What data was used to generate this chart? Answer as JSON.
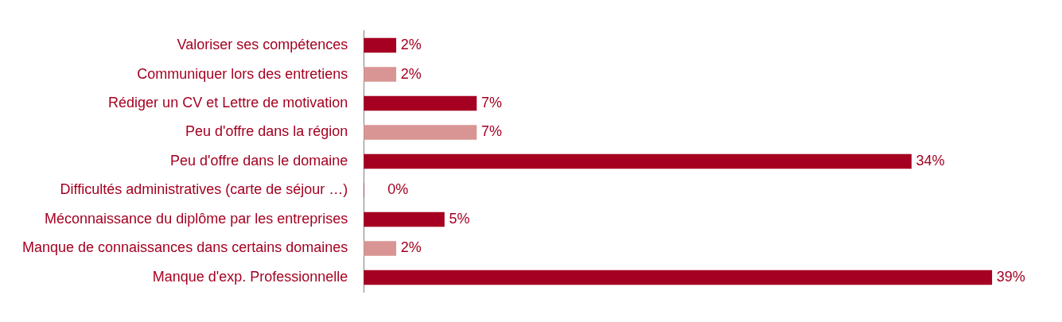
{
  "chart_data": {
    "type": "bar",
    "orientation": "horizontal",
    "categories": [
      "Valoriser ses compétences",
      "Communiquer lors des entretiens",
      "Rédiger un CV et Lettre de motivation",
      "Peu d'offre dans la région",
      "Peu d'offre dans le domaine",
      "Difficultés administratives (carte de séjour …)",
      "Méconnaissance du diplôme par les entreprises",
      "Manque de connaissances dans certains domaines",
      "Manque d'exp. Professionnelle"
    ],
    "values": [
      2,
      2,
      7,
      7,
      34,
      0,
      5,
      2,
      39
    ],
    "colors": [
      "#a50021",
      "#d99594",
      "#a50021",
      "#d99594",
      "#a50021",
      "#a50021",
      "#a50021",
      "#d99594",
      "#a50021"
    ],
    "value_labels": [
      "2%",
      "2%",
      "7%",
      "7%",
      "34%",
      "0%",
      "5%",
      "2%",
      "39%"
    ],
    "grid": false,
    "legend": false,
    "tick_labels": "y"
  }
}
